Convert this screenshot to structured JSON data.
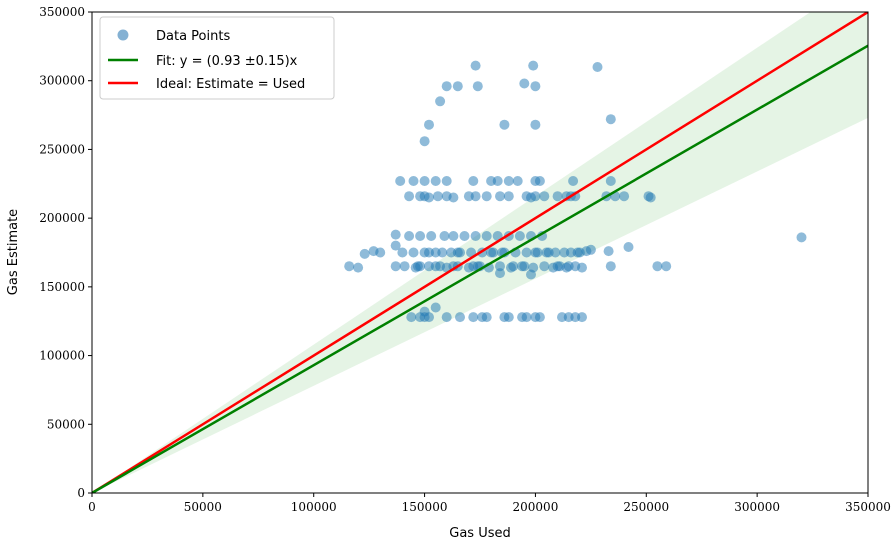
{
  "chart_data": {
    "type": "scatter",
    "xlabel": "Gas Used",
    "ylabel": "Gas Estimate",
    "xlim": [
      0,
      350000
    ],
    "ylim": [
      0,
      350000
    ],
    "x_ticks": [
      0,
      50000,
      100000,
      150000,
      200000,
      250000,
      300000,
      350000
    ],
    "x_tick_labels": [
      "0",
      "50000",
      "100000",
      "150000",
      "200000",
      "250000",
      "300000",
      "350000"
    ],
    "y_ticks": [
      0,
      50000,
      100000,
      150000,
      200000,
      250000,
      300000,
      350000
    ],
    "y_tick_labels": [
      "0",
      "50000",
      "100000",
      "150000",
      "200000",
      "250000",
      "300000",
      "350000"
    ],
    "grid": false,
    "legend_position": "top-left",
    "legend": [
      {
        "label": "Data Points",
        "kind": "marker",
        "color": "#5b97c4"
      },
      {
        "label": "Fit: y = (0.93 ±0.15)x",
        "kind": "line",
        "color": "#008000"
      },
      {
        "label": "Ideal: Estimate = Used",
        "kind": "line",
        "color": "#ff0000"
      }
    ],
    "fit": {
      "slope": 0.93,
      "slope_low": 0.78,
      "slope_high": 1.08,
      "color": "#008000",
      "band_color": "#d4ecd4"
    },
    "ideal": {
      "slope": 1.0,
      "color": "#ff0000"
    },
    "series": [
      {
        "name": "Data Points",
        "color": "#1f77b4",
        "points": [
          [
            116000,
            165000
          ],
          [
            120000,
            164000
          ],
          [
            123000,
            174000
          ],
          [
            127000,
            176000
          ],
          [
            130000,
            175000
          ],
          [
            137000,
            165000
          ],
          [
            137000,
            180000
          ],
          [
            137000,
            188000
          ],
          [
            140000,
            175000
          ],
          [
            141000,
            165000
          ],
          [
            143000,
            187000
          ],
          [
            145000,
            175000
          ],
          [
            146000,
            164000
          ],
          [
            147000,
            165000
          ],
          [
            148000,
            187000
          ],
          [
            150000,
            175000
          ],
          [
            152000,
            165000
          ],
          [
            153000,
            187000
          ],
          [
            155000,
            175000
          ],
          [
            157000,
            165000
          ],
          [
            158000,
            175000
          ],
          [
            159000,
            187000
          ],
          [
            160000,
            164000
          ],
          [
            162000,
            175000
          ],
          [
            163000,
            187000
          ],
          [
            165000,
            165000
          ],
          [
            166000,
            175000
          ],
          [
            168000,
            187000
          ],
          [
            170000,
            164000
          ],
          [
            171000,
            175000
          ],
          [
            173000,
            187000
          ],
          [
            174000,
            165000
          ],
          [
            176000,
            175000
          ],
          [
            178000,
            187000
          ],
          [
            179000,
            164000
          ],
          [
            181000,
            175000
          ],
          [
            183000,
            187000
          ],
          [
            184000,
            165000
          ],
          [
            186000,
            175000
          ],
          [
            188000,
            187000
          ],
          [
            189000,
            164000
          ],
          [
            191000,
            175000
          ],
          [
            193000,
            187000
          ],
          [
            194000,
            165000
          ],
          [
            196000,
            175000
          ],
          [
            198000,
            187000
          ],
          [
            199000,
            164000
          ],
          [
            201000,
            175000
          ],
          [
            203000,
            187000
          ],
          [
            204000,
            165000
          ],
          [
            206000,
            175000
          ],
          [
            208000,
            164000
          ],
          [
            209000,
            175000
          ],
          [
            211000,
            165000
          ],
          [
            213000,
            175000
          ],
          [
            214000,
            164000
          ],
          [
            216000,
            175000
          ],
          [
            218000,
            165000
          ],
          [
            219000,
            175000
          ],
          [
            221000,
            164000
          ],
          [
            223000,
            176000
          ],
          [
            225000,
            177000
          ],
          [
            233000,
            176000
          ],
          [
            242000,
            179000
          ],
          [
            255000,
            165000
          ],
          [
            259000,
            165000
          ],
          [
            234000,
            165000
          ],
          [
            198000,
            159000
          ],
          [
            184000,
            160000
          ],
          [
            148000,
            165000
          ],
          [
            155000,
            165000
          ],
          [
            163000,
            165000
          ],
          [
            172000,
            165000
          ],
          [
            180000,
            175000
          ],
          [
            190000,
            165000
          ],
          [
            200000,
            175000
          ],
          [
            210000,
            165000
          ],
          [
            220000,
            175000
          ],
          [
            215000,
            165000
          ],
          [
            205000,
            175000
          ],
          [
            195000,
            165000
          ],
          [
            185000,
            175000
          ],
          [
            175000,
            165000
          ],
          [
            165000,
            175000
          ],
          [
            152000,
            175000
          ],
          [
            144000,
            128000
          ],
          [
            148000,
            128000
          ],
          [
            150000,
            128000
          ],
          [
            152000,
            128000
          ],
          [
            155000,
            135000
          ],
          [
            160000,
            128000
          ],
          [
            166000,
            128000
          ],
          [
            172000,
            128000
          ],
          [
            176000,
            128000
          ],
          [
            178000,
            128000
          ],
          [
            186000,
            128000
          ],
          [
            188000,
            128000
          ],
          [
            194000,
            128000
          ],
          [
            196000,
            128000
          ],
          [
            200000,
            128000
          ],
          [
            202000,
            128000
          ],
          [
            212000,
            128000
          ],
          [
            215000,
            128000
          ],
          [
            218000,
            128000
          ],
          [
            221000,
            128000
          ],
          [
            150000,
            132000
          ],
          [
            139000,
            227000
          ],
          [
            145000,
            227000
          ],
          [
            150000,
            227000
          ],
          [
            155000,
            227000
          ],
          [
            160000,
            227000
          ],
          [
            172000,
            227000
          ],
          [
            180000,
            227000
          ],
          [
            183000,
            227000
          ],
          [
            188000,
            227000
          ],
          [
            192000,
            227000
          ],
          [
            200000,
            227000
          ],
          [
            202000,
            227000
          ],
          [
            217000,
            227000
          ],
          [
            234000,
            227000
          ],
          [
            143000,
            216000
          ],
          [
            148000,
            216000
          ],
          [
            150000,
            216000
          ],
          [
            152000,
            215000
          ],
          [
            156000,
            216000
          ],
          [
            160000,
            216000
          ],
          [
            163000,
            215000
          ],
          [
            170000,
            216000
          ],
          [
            173000,
            216000
          ],
          [
            178000,
            216000
          ],
          [
            184000,
            216000
          ],
          [
            188000,
            216000
          ],
          [
            196000,
            216000
          ],
          [
            198000,
            215000
          ],
          [
            200000,
            216000
          ],
          [
            204000,
            216000
          ],
          [
            210000,
            216000
          ],
          [
            214000,
            216000
          ],
          [
            216000,
            216000
          ],
          [
            218000,
            216000
          ],
          [
            232000,
            216000
          ],
          [
            236000,
            216000
          ],
          [
            240000,
            216000
          ],
          [
            251000,
            216000
          ],
          [
            252000,
            215000
          ],
          [
            150000,
            256000
          ],
          [
            152000,
            268000
          ],
          [
            157000,
            285000
          ],
          [
            160000,
            296000
          ],
          [
            165000,
            296000
          ],
          [
            173000,
            311000
          ],
          [
            174000,
            296000
          ],
          [
            186000,
            268000
          ],
          [
            195000,
            298000
          ],
          [
            199000,
            311000
          ],
          [
            200000,
            296000
          ],
          [
            200000,
            268000
          ],
          [
            228000,
            310000
          ],
          [
            234000,
            272000
          ],
          [
            320000,
            186000
          ]
        ]
      }
    ]
  }
}
